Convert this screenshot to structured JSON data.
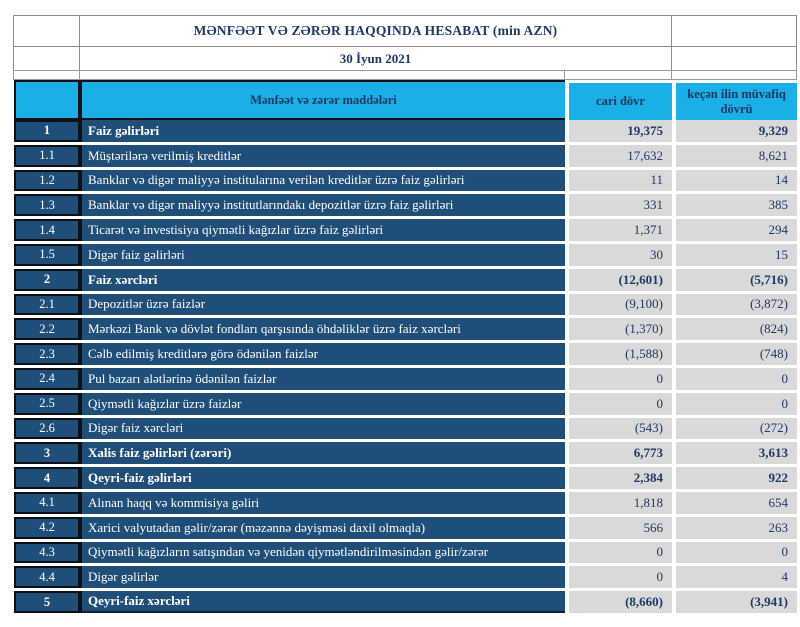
{
  "report": {
    "title": "MƏNFƏƏT VƏ ZƏRƏR HAQQINDA HESABAT (min AZN)",
    "date": "30 İyun 2021"
  },
  "table": {
    "columns": {
      "items": "Mənfəət və zərər maddələri",
      "current": "cari dövr",
      "previous": "keçən ilin müvafiq dövrü"
    },
    "rows": [
      {
        "no": "1",
        "label": "Faiz  gəlirləri",
        "current": "19,375",
        "previous": "9,329",
        "bold": true
      },
      {
        "no": "1.1",
        "label": "Müştərilərə verilmiş kreditlər",
        "current": "17,632",
        "previous": "8,621",
        "bold": false
      },
      {
        "no": "1.2",
        "label": "Banklar və digər maliyyə institularına verilən kreditlər üzrə faiz gəlirləri",
        "current": "11",
        "previous": "14",
        "bold": false
      },
      {
        "no": "1.3",
        "label": "Banklar və digər maliyyə institutlarındakı depozitlər üzrə faiz gəlirləri",
        "current": "331",
        "previous": "385",
        "bold": false
      },
      {
        "no": "1.4",
        "label": "Ticarət və investisiya qiymətli kağızlar üzrə faiz gəlirləri",
        "current": "1,371",
        "previous": "294",
        "bold": false
      },
      {
        "no": "1.5",
        "label": "Digər faiz gəlirləri",
        "current": "30",
        "previous": "15",
        "bold": false
      },
      {
        "no": "2",
        "label": "Faiz xərcləri",
        "current": "(12,601)",
        "previous": "(5,716)",
        "bold": true
      },
      {
        "no": "2.1",
        "label": "Depozitlər üzrə faizlər",
        "current": "(9,100)",
        "previous": "(3,872)",
        "bold": false
      },
      {
        "no": "2.2",
        "label": "Mərkəzi Bank və dövlət fondları qarşısında öhdəliklər üzrə faiz xərcləri",
        "current": "(1,370)",
        "previous": "(824)",
        "bold": false
      },
      {
        "no": "2.3",
        "label": "Cəlb edilmiş kreditlərə görə ödənilən faizlər",
        "current": "(1,588)",
        "previous": "(748)",
        "bold": false
      },
      {
        "no": "2.4",
        "label": "Pul bazarı alətlərinə ödənilən faizlər",
        "current": "0",
        "previous": "0",
        "bold": false
      },
      {
        "no": "2.5",
        "label": "Qiymətli kağızlar üzrə faizlər",
        "current": "0",
        "previous": "0",
        "bold": false
      },
      {
        "no": "2.6",
        "label": "Digər faiz xərcləri",
        "current": "(543)",
        "previous": "(272)",
        "bold": false
      },
      {
        "no": "3",
        "label": "Xalis faiz gəlirləri (zərəri)",
        "current": "6,773",
        "previous": "3,613",
        "bold": true
      },
      {
        "no": "4",
        "label": "Qeyri-faiz gəlirləri",
        "current": "2,384",
        "previous": "922",
        "bold": true
      },
      {
        "no": "4.1",
        "label": "Alınan haqq və kommisiya gəliri",
        "current": "1,818",
        "previous": "654",
        "bold": false
      },
      {
        "no": "4.2",
        "label": "Xarici valyutadan gəlir/zərər (məzənnə dəyişməsi daxil olmaqla)",
        "current": "566",
        "previous": "263",
        "bold": false
      },
      {
        "no": "4.3",
        "label": "Qiymətli kağızların satışından və yenidən qiymətləndirilməsindən gəlir/zərər",
        "current": "0",
        "previous": "0",
        "bold": false
      },
      {
        "no": "4.4",
        "label": "Digər gəlirlər",
        "current": "0",
        "previous": "4",
        "bold": false
      },
      {
        "no": "5",
        "label": "Qeyri-faiz xərcləri",
        "current": "(8,660)",
        "previous": "(3,941)",
        "bold": true
      }
    ]
  },
  "colors": {
    "accent_cyan": "#1BAFE8",
    "navy_cell": "#1F4E79",
    "navy_text": "#1F3864",
    "gray_cell": "#D9D9D9"
  }
}
